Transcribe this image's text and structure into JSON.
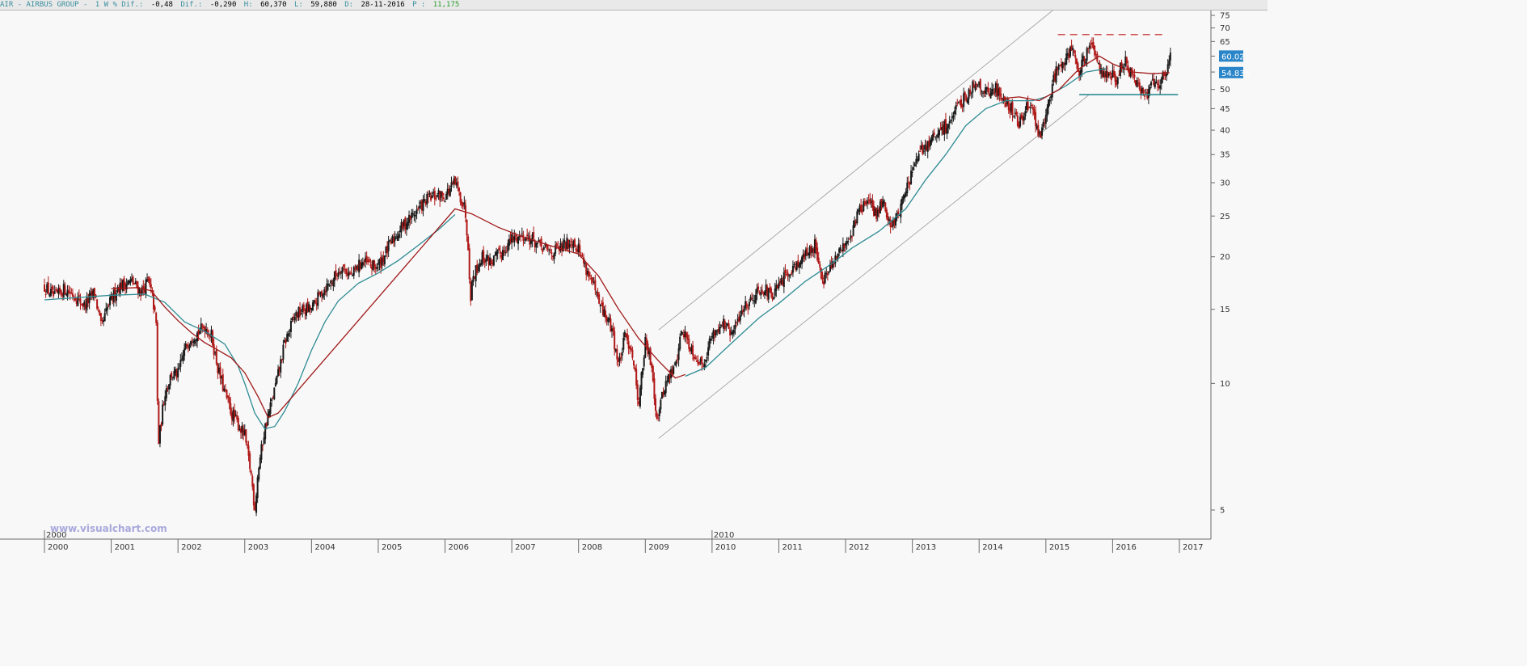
{
  "header": {
    "symbol_label": "AIR - AIRBUS GROUP -",
    "period_label": "1 W % Dif.:",
    "pct_change": "-0,48",
    "dif_label": "Dif.:",
    "change": "-0,290",
    "high_label": "H:",
    "high": "60,370",
    "low_label": "L:",
    "low": "59,880",
    "date_label": "D:",
    "date": "28-11-2016",
    "p_label": "P :",
    "p_value": "11,175"
  },
  "watermark": "www.visualchart.com",
  "colors": {
    "background": "#f8f8f8",
    "price_up": "#1a1a1a",
    "price_down": "#b01818",
    "ma_slow": "#2e8c94",
    "ma_fast": "#a01818",
    "channel": "#9a9a9a",
    "resistance": "#c01818",
    "support": "#2e8c94",
    "price_tag": "#2a86c8"
  },
  "chart_data": {
    "type": "candlestick",
    "scale": "log",
    "y_ticks": [
      5,
      10,
      15,
      20,
      25,
      30,
      35,
      40,
      45,
      50,
      55,
      60,
      65,
      70,
      75
    ],
    "ylim": [
      4.3,
      78
    ],
    "x_ticks": [
      "2000",
      "2001",
      "2002",
      "2003",
      "2004",
      "2005",
      "2006",
      "2007",
      "2008",
      "2009",
      "2010",
      "2011",
      "2012",
      "2013",
      "2014",
      "2015",
      "2016",
      "2017"
    ],
    "x_marker_labels": [
      "2000",
      "2010"
    ],
    "xlim": [
      1999.9,
      2017.55
    ],
    "price_path": [
      [
        2000.0,
        17.0
      ],
      [
        2000.15,
        16.0
      ],
      [
        2000.3,
        16.8
      ],
      [
        2000.45,
        16.2
      ],
      [
        2000.6,
        15.3
      ],
      [
        2000.75,
        16.5
      ],
      [
        2000.85,
        13.5
      ],
      [
        2000.95,
        15.2
      ],
      [
        2001.1,
        17.0
      ],
      [
        2001.3,
        17.5
      ],
      [
        2001.45,
        16.5
      ],
      [
        2001.55,
        17.5
      ],
      [
        2001.62,
        16.0
      ],
      [
        2001.68,
        13.5
      ],
      [
        2001.7,
        7.0
      ],
      [
        2001.8,
        9.5
      ],
      [
        2001.9,
        10.5
      ],
      [
        2002.0,
        10.5
      ],
      [
        2002.1,
        12.0
      ],
      [
        2002.2,
        13.0
      ],
      [
        2002.3,
        13.2
      ],
      [
        2002.4,
        13.7
      ],
      [
        2002.5,
        13.0
      ],
      [
        2002.6,
        10.8
      ],
      [
        2002.7,
        9.5
      ],
      [
        2002.8,
        8.5
      ],
      [
        2002.9,
        8.0
      ],
      [
        2003.0,
        7.5
      ],
      [
        2003.1,
        6.0
      ],
      [
        2003.15,
        5.0
      ],
      [
        2003.2,
        6.2
      ],
      [
        2003.3,
        7.8
      ],
      [
        2003.4,
        9.0
      ],
      [
        2003.5,
        10.5
      ],
      [
        2003.6,
        12.5
      ],
      [
        2003.75,
        14.5
      ],
      [
        2003.9,
        15.0
      ],
      [
        2004.0,
        15.0
      ],
      [
        2004.15,
        16.5
      ],
      [
        2004.3,
        17.5
      ],
      [
        2004.45,
        19.0
      ],
      [
        2004.6,
        18.0
      ],
      [
        2004.75,
        19.5
      ],
      [
        2004.9,
        19.0
      ],
      [
        2005.0,
        19.0
      ],
      [
        2005.15,
        21.0
      ],
      [
        2005.3,
        23.0
      ],
      [
        2005.45,
        24.5
      ],
      [
        2005.6,
        26.0
      ],
      [
        2005.75,
        27.5
      ],
      [
        2005.9,
        28.0
      ],
      [
        2006.0,
        28.0
      ],
      [
        2006.15,
        30.0
      ],
      [
        2006.3,
        26.0
      ],
      [
        2006.35,
        21.0
      ],
      [
        2006.38,
        16.0
      ],
      [
        2006.42,
        18.0
      ],
      [
        2006.55,
        20.0
      ],
      [
        2006.7,
        19.5
      ],
      [
        2006.85,
        20.5
      ],
      [
        2007.0,
        22.0
      ],
      [
        2007.15,
        22.5
      ],
      [
        2007.3,
        22.0
      ],
      [
        2007.45,
        21.0
      ],
      [
        2007.6,
        20.5
      ],
      [
        2007.75,
        21.0
      ],
      [
        2007.9,
        22.0
      ],
      [
        2008.0,
        21.0
      ],
      [
        2008.1,
        19.0
      ],
      [
        2008.2,
        17.5
      ],
      [
        2008.3,
        15.5
      ],
      [
        2008.4,
        14.5
      ],
      [
        2008.5,
        13.5
      ],
      [
        2008.6,
        11.0
      ],
      [
        2008.7,
        13.0
      ],
      [
        2008.8,
        12.0
      ],
      [
        2008.9,
        9.0
      ],
      [
        2009.0,
        12.5
      ],
      [
        2009.1,
        11.0
      ],
      [
        2009.17,
        8.2
      ],
      [
        2009.3,
        10.0
      ],
      [
        2009.45,
        11.0
      ],
      [
        2009.55,
        13.5
      ],
      [
        2009.7,
        12.0
      ],
      [
        2009.85,
        11.0
      ],
      [
        2010.0,
        13.0
      ],
      [
        2010.15,
        14.0
      ],
      [
        2010.3,
        13.0
      ],
      [
        2010.45,
        15.0
      ],
      [
        2010.6,
        16.0
      ],
      [
        2010.75,
        17.0
      ],
      [
        2010.9,
        16.0
      ],
      [
        2011.0,
        17.0
      ],
      [
        2011.15,
        18.5
      ],
      [
        2011.3,
        19.5
      ],
      [
        2011.45,
        20.5
      ],
      [
        2011.55,
        21.5
      ],
      [
        2011.65,
        17.5
      ],
      [
        2011.8,
        19.0
      ],
      [
        2011.95,
        21.0
      ],
      [
        2012.1,
        23.0
      ],
      [
        2012.2,
        26.0
      ],
      [
        2012.35,
        27.0
      ],
      [
        2012.45,
        25.0
      ],
      [
        2012.55,
        27.5
      ],
      [
        2012.65,
        24.0
      ],
      [
        2012.75,
        24.5
      ],
      [
        2012.85,
        27.0
      ],
      [
        2013.0,
        32.0
      ],
      [
        2013.15,
        36.0
      ],
      [
        2013.3,
        38.0
      ],
      [
        2013.45,
        40.0
      ],
      [
        2013.6,
        43.0
      ],
      [
        2013.75,
        47.0
      ],
      [
        2013.9,
        51.0
      ],
      [
        2014.0,
        52.0
      ],
      [
        2014.1,
        49.0
      ],
      [
        2014.25,
        50.0
      ],
      [
        2014.4,
        47.0
      ],
      [
        2014.5,
        44.5
      ],
      [
        2014.6,
        41.0
      ],
      [
        2014.7,
        46.0
      ],
      [
        2014.8,
        44.0
      ],
      [
        2014.92,
        38.5
      ],
      [
        2015.0,
        43.0
      ],
      [
        2015.1,
        52.0
      ],
      [
        2015.2,
        58.0
      ],
      [
        2015.3,
        60.0
      ],
      [
        2015.4,
        63.0
      ],
      [
        2015.45,
        59.0
      ],
      [
        2015.5,
        54.0
      ],
      [
        2015.55,
        58.0
      ],
      [
        2015.65,
        62.0
      ],
      [
        2015.7,
        63.0
      ],
      [
        2015.85,
        55.0
      ],
      [
        2016.0,
        54.0
      ],
      [
        2016.05,
        50.0
      ],
      [
        2016.1,
        56.0
      ],
      [
        2016.2,
        58.0
      ],
      [
        2016.3,
        53.0
      ],
      [
        2016.4,
        50.0
      ],
      [
        2016.5,
        48.5
      ],
      [
        2016.6,
        53.0
      ],
      [
        2016.7,
        52.0
      ],
      [
        2016.8,
        55.0
      ],
      [
        2016.87,
        60.2
      ]
    ],
    "ma_slow_path": [
      [
        2000.0,
        15.8
      ],
      [
        2000.5,
        16.0
      ],
      [
        2001.0,
        16.2
      ],
      [
        2001.5,
        16.3
      ],
      [
        2001.8,
        15.6
      ],
      [
        2002.1,
        14.0
      ],
      [
        2002.4,
        13.3
      ],
      [
        2002.7,
        12.4
      ],
      [
        2002.9,
        11.0
      ],
      [
        2003.0,
        10.0
      ],
      [
        2003.15,
        8.5
      ],
      [
        2003.3,
        7.8
      ],
      [
        2003.45,
        7.9
      ],
      [
        2003.6,
        8.6
      ],
      [
        2003.8,
        10.0
      ],
      [
        2004.0,
        12.0
      ],
      [
        2004.2,
        14.0
      ],
      [
        2004.4,
        15.7
      ],
      [
        2004.7,
        17.3
      ],
      [
        2005.0,
        18.3
      ],
      [
        2005.3,
        19.6
      ],
      [
        2005.6,
        21.3
      ],
      [
        2005.9,
        23.2
      ],
      [
        2006.15,
        25.2
      ]
    ],
    "ma_fast_path": [
      [
        2001.0,
        16.8
      ],
      [
        2001.4,
        16.9
      ],
      [
        2001.6,
        16.6
      ],
      [
        2001.8,
        15.2
      ],
      [
        2002.0,
        14.1
      ],
      [
        2002.2,
        13.2
      ],
      [
        2002.4,
        12.5
      ],
      [
        2002.6,
        12.0
      ],
      [
        2002.8,
        11.5
      ],
      [
        2003.0,
        10.6
      ],
      [
        2003.2,
        9.3
      ],
      [
        2003.35,
        8.3
      ],
      [
        2003.5,
        8.5
      ],
      [
        2006.15,
        26.0
      ],
      [
        2006.4,
        25.3
      ],
      [
        2006.8,
        23.5
      ],
      [
        2007.2,
        22.2
      ],
      [
        2007.6,
        21.2
      ],
      [
        2008.0,
        20.3
      ],
      [
        2008.3,
        18.0
      ],
      [
        2008.6,
        15.0
      ],
      [
        2008.9,
        12.8
      ],
      [
        2009.2,
        11.3
      ],
      [
        2009.45,
        10.3
      ],
      [
        2009.6,
        10.5
      ]
    ],
    "ma_slow2_path": [
      [
        2009.6,
        10.4
      ],
      [
        2009.9,
        10.9
      ],
      [
        2010.3,
        12.5
      ],
      [
        2010.7,
        14.3
      ],
      [
        2011.0,
        15.5
      ],
      [
        2011.4,
        17.5
      ],
      [
        2011.8,
        19.3
      ],
      [
        2012.1,
        21.0
      ],
      [
        2012.5,
        23.0
      ],
      [
        2012.9,
        26.0
      ],
      [
        2013.2,
        30.5
      ],
      [
        2013.5,
        35.0
      ],
      [
        2013.8,
        41.0
      ],
      [
        2014.1,
        45.0
      ],
      [
        2014.4,
        47.0
      ],
      [
        2014.8,
        47.0
      ],
      [
        2015.0,
        48.0
      ],
      [
        2015.3,
        51.0
      ],
      [
        2015.6,
        55.0
      ],
      [
        2015.9,
        56.0
      ]
    ],
    "ma_fast2_path": [
      [
        2014.3,
        47.5
      ],
      [
        2014.6,
        48.0
      ],
      [
        2014.9,
        47.0
      ],
      [
        2015.2,
        50.0
      ],
      [
        2015.5,
        56.0
      ],
      [
        2015.8,
        60.0
      ],
      [
        2016.0,
        57.5
      ],
      [
        2016.3,
        55.0
      ],
      [
        2016.6,
        54.5
      ],
      [
        2016.85,
        54.8
      ]
    ],
    "channel_upper": [
      [
        2009.2,
        13.4
      ],
      [
        2015.1,
        77.0
      ]
    ],
    "channel_lower": [
      [
        2009.2,
        7.4
      ],
      [
        2015.65,
        48.6
      ]
    ],
    "resistance": [
      [
        2015.18,
        67.5
      ],
      [
        2016.75,
        67.5
      ]
    ],
    "support": [
      [
        2015.5,
        48.6
      ],
      [
        2016.98,
        48.6
      ]
    ],
    "current_price": 60.02,
    "current_price_label": "60.02",
    "ma_value": 54.835,
    "ma_value_label": "54.835"
  }
}
